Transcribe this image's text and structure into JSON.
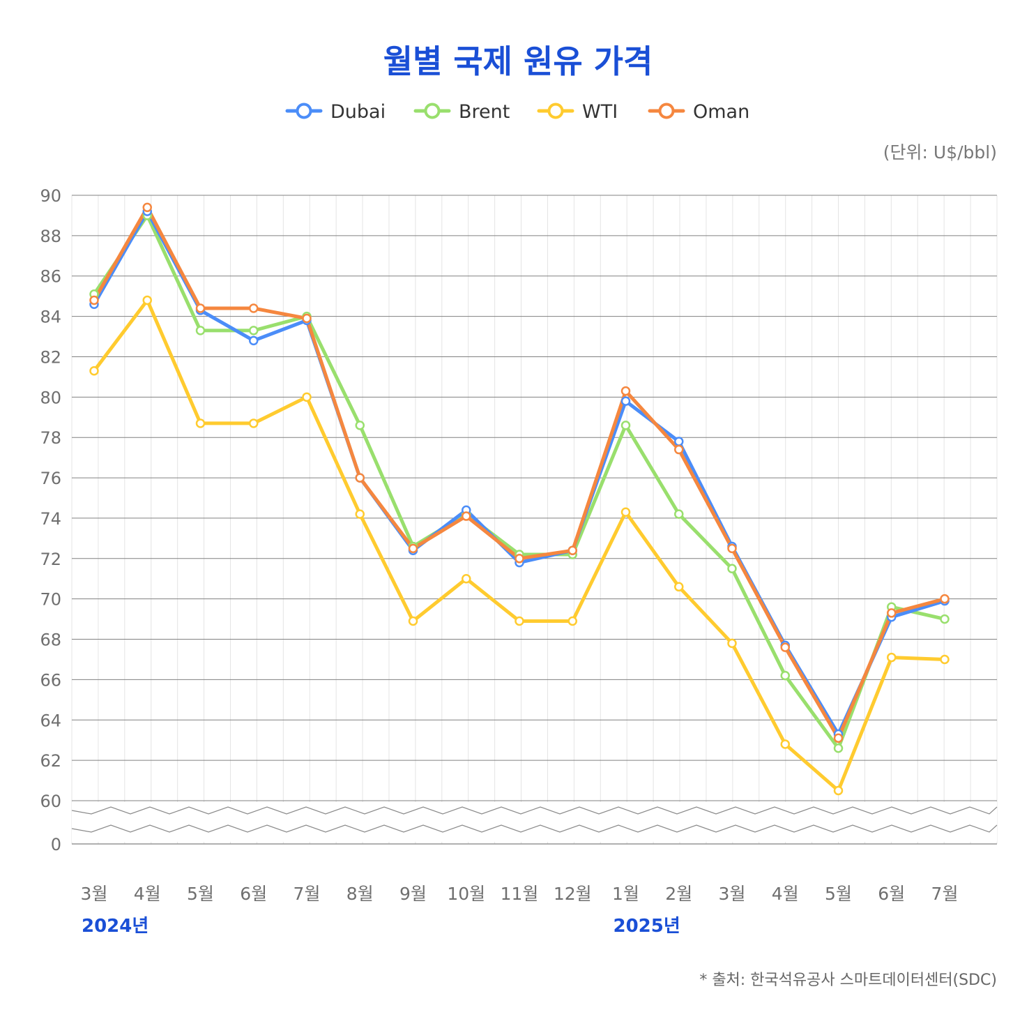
{
  "chart_data": {
    "type": "line",
    "title": "월별 국제 원유 가격",
    "unit_note": "(단위: U$/bbl)",
    "source_note": "* 출처: 한국석유공사 스마트데이터센터(SDC)",
    "categories": [
      "3월",
      "4월",
      "5월",
      "6월",
      "7월",
      "8월",
      "9월",
      "10월",
      "11월",
      "12월",
      "1월",
      "2월",
      "3월",
      "4월",
      "5월",
      "6월",
      "7월"
    ],
    "year_labels": [
      {
        "index": 0,
        "label": "2024년"
      },
      {
        "index": 10,
        "label": "2025년"
      }
    ],
    "y_ticks": [
      90,
      88,
      86,
      84,
      82,
      80,
      78,
      76,
      74,
      72,
      70,
      68,
      66,
      64,
      62,
      60,
      0
    ],
    "ylim": [
      60,
      90
    ],
    "y_axis_break": true,
    "grid": true,
    "legend_position": "top-center",
    "series": [
      {
        "name": "Dubai",
        "color": "#4b8df8",
        "values": [
          84.6,
          89.2,
          84.3,
          82.8,
          83.8,
          76.0,
          72.4,
          74.4,
          71.8,
          72.4,
          79.8,
          77.8,
          72.6,
          67.7,
          63.3,
          69.1,
          69.9
        ]
      },
      {
        "name": "Brent",
        "color": "#99df6d",
        "values": [
          85.1,
          89.0,
          83.3,
          83.3,
          84.0,
          78.6,
          72.6,
          74.2,
          72.2,
          72.2,
          78.6,
          74.2,
          71.5,
          66.2,
          62.6,
          69.6,
          69.0
        ]
      },
      {
        "name": "WTI",
        "color": "#ffcb2f",
        "values": [
          81.3,
          84.8,
          78.7,
          78.7,
          80.0,
          74.2,
          68.9,
          71.0,
          68.9,
          68.9,
          74.3,
          70.6,
          67.8,
          62.8,
          60.5,
          67.1,
          67.0
        ]
      },
      {
        "name": "Oman",
        "color": "#f5873f",
        "values": [
          84.8,
          89.4,
          84.4,
          84.4,
          83.9,
          76.0,
          72.5,
          74.1,
          72.0,
          72.4,
          80.3,
          77.4,
          72.5,
          67.6,
          63.1,
          69.3,
          70.0
        ]
      }
    ]
  }
}
